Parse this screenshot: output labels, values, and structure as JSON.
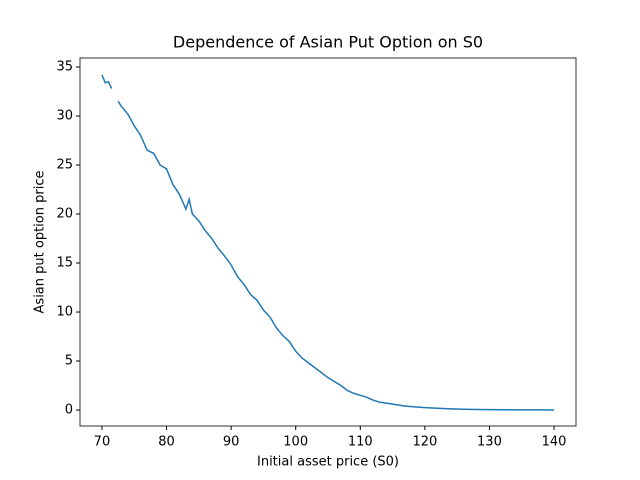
{
  "chart_data": {
    "type": "line",
    "title": "Dependence of Asian Put Option on S0",
    "x_label": "Initial asset price (S0)",
    "y_label": "Asian put option price",
    "x": [
      70,
      70.5,
      71,
      71.5,
      72,
      72.5,
      73,
      74,
      75,
      76,
      77,
      78,
      79,
      80,
      81,
      82,
      83,
      83.5,
      84,
      85,
      86,
      87,
      88,
      89,
      90,
      91,
      92,
      93,
      94,
      95,
      96,
      97,
      98,
      99,
      100,
      101,
      102,
      103,
      104,
      105,
      106,
      107,
      108,
      109,
      110,
      111,
      112,
      113,
      114,
      115,
      116,
      117,
      118,
      119,
      120,
      122,
      124,
      126,
      128,
      130,
      132,
      134,
      136,
      138,
      140
    ],
    "series": [
      {
        "name": "Asian put option price",
        "color": "#1f77b4",
        "values": [
          34.2,
          33.4,
          33.5,
          32.8,
          null,
          31.5,
          31.0,
          30.2,
          29.0,
          28.0,
          26.5,
          26.2,
          25.0,
          24.6,
          23.0,
          22.0,
          20.5,
          21.5,
          20.0,
          19.3,
          18.3,
          17.5,
          16.5,
          15.7,
          14.8,
          13.6,
          12.8,
          11.8,
          11.2,
          10.2,
          9.5,
          8.4,
          7.6,
          7.0,
          6.0,
          5.3,
          4.8,
          4.3,
          3.8,
          3.3,
          2.9,
          2.5,
          2.0,
          1.7,
          1.5,
          1.3,
          1.0,
          0.8,
          0.7,
          0.6,
          0.5,
          0.4,
          0.35,
          0.3,
          0.25,
          0.18,
          0.12,
          0.08,
          0.06,
          0.04,
          0.03,
          0.02,
          0.01,
          0.01,
          0.0
        ]
      }
    ],
    "xlim": [
      66.6,
      143.4
    ],
    "xticks": [
      70,
      80,
      90,
      100,
      110,
      120,
      130,
      140
    ],
    "ylim": [
      -1.63,
      35.92
    ],
    "yticks": [
      0,
      5,
      10,
      15,
      20,
      25,
      30,
      35
    ]
  }
}
